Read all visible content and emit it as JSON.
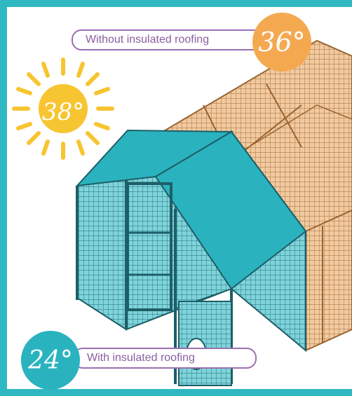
{
  "colors": {
    "frame": "#2fb8c2",
    "sun": "#f7c531",
    "hot_badge": "#f4a951",
    "cool_badge": "#2ab3be",
    "label_border": "#9a6fb0",
    "insulated_roof": "#2ab3be",
    "uninsulated_wood": "#e8b77d"
  },
  "sun": {
    "icon": "sun-icon",
    "temperature": "38°"
  },
  "without_insulation": {
    "label": "Without insulated roofing",
    "temperature": "36°"
  },
  "with_insulation": {
    "label": "With insulated roofing",
    "temperature": "24°"
  }
}
